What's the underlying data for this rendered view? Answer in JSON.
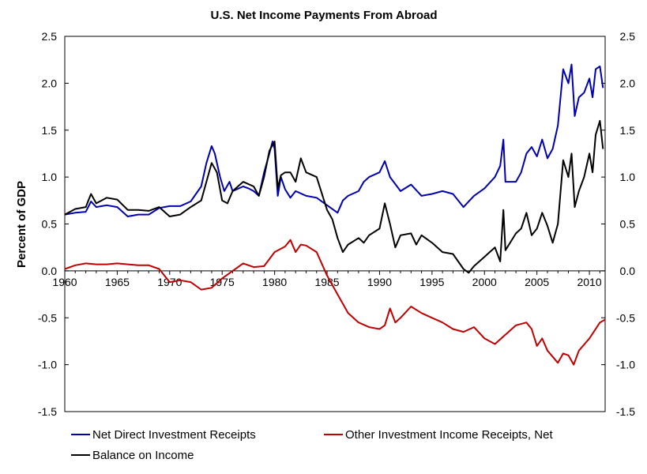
{
  "chart_data": {
    "type": "line",
    "title": "U.S. Net Income Payments From Abroad",
    "ylabel": "Percent of GDP",
    "xlabel": "",
    "xlim": [
      1960,
      2011.5
    ],
    "ylim": [
      -1.5,
      2.5
    ],
    "x_ticks": [
      "1960",
      "1965",
      "1970",
      "1975",
      "1980",
      "1985",
      "1990",
      "1995",
      "2000",
      "2005",
      "2010"
    ],
    "y_ticks_left": [
      "2.5",
      "2.0",
      "1.5",
      "1.0",
      "0.5",
      "0.0",
      "-0.5",
      "-1.0",
      "-1.5"
    ],
    "y_ticks_right": [
      "2.5",
      "2.0",
      "1.5",
      "1.0",
      "0.5",
      "0.0",
      "-0.5",
      "-1.0",
      "-1.5"
    ],
    "grid": false,
    "legend_position": "bottom",
    "series": [
      {
        "name": "Net Direct Investment Receipts",
        "color": "#0000b3",
        "points": [
          [
            1960,
            0.6
          ],
          [
            1961,
            0.62
          ],
          [
            1962,
            0.63
          ],
          [
            1962.5,
            0.74
          ],
          [
            1963,
            0.68
          ],
          [
            1964,
            0.7
          ],
          [
            1965,
            0.68
          ],
          [
            1966,
            0.58
          ],
          [
            1967,
            0.6
          ],
          [
            1968,
            0.6
          ],
          [
            1969,
            0.67
          ],
          [
            1970,
            0.69
          ],
          [
            1971,
            0.69
          ],
          [
            1972,
            0.74
          ],
          [
            1973,
            0.9
          ],
          [
            1973.5,
            1.15
          ],
          [
            1974,
            1.33
          ],
          [
            1974.3,
            1.25
          ],
          [
            1974.8,
            1.0
          ],
          [
            1975.2,
            0.85
          ],
          [
            1975.7,
            0.95
          ],
          [
            1976,
            0.85
          ],
          [
            1977,
            0.9
          ],
          [
            1977.5,
            0.88
          ],
          [
            1978,
            0.85
          ],
          [
            1978.5,
            0.8
          ],
          [
            1979,
            1.05
          ],
          [
            1979.5,
            1.25
          ],
          [
            1979.8,
            1.38
          ],
          [
            1980,
            1.3
          ],
          [
            1980.3,
            0.8
          ],
          [
            1980.6,
            1.0
          ],
          [
            1981,
            0.87
          ],
          [
            1981.5,
            0.78
          ],
          [
            1982,
            0.85
          ],
          [
            1983,
            0.8
          ],
          [
            1984,
            0.78
          ],
          [
            1985,
            0.7
          ],
          [
            1986,
            0.62
          ],
          [
            1986.5,
            0.75
          ],
          [
            1987,
            0.8
          ],
          [
            1988,
            0.85
          ],
          [
            1988.5,
            0.95
          ],
          [
            1989,
            1.0
          ],
          [
            1990,
            1.05
          ],
          [
            1990.5,
            1.17
          ],
          [
            1991,
            1.0
          ],
          [
            1992,
            0.85
          ],
          [
            1993,
            0.92
          ],
          [
            1994,
            0.8
          ],
          [
            1995,
            0.82
          ],
          [
            1996,
            0.85
          ],
          [
            1997,
            0.82
          ],
          [
            1998,
            0.68
          ],
          [
            1999,
            0.8
          ],
          [
            2000,
            0.88
          ],
          [
            2001,
            1.0
          ],
          [
            2001.5,
            1.12
          ],
          [
            2001.8,
            1.4
          ],
          [
            2002,
            0.95
          ],
          [
            2003,
            0.95
          ],
          [
            2003.5,
            1.05
          ],
          [
            2004,
            1.25
          ],
          [
            2004.5,
            1.32
          ],
          [
            2005,
            1.22
          ],
          [
            2005.5,
            1.4
          ],
          [
            2006,
            1.2
          ],
          [
            2006.5,
            1.3
          ],
          [
            2007,
            1.55
          ],
          [
            2007.5,
            2.15
          ],
          [
            2008,
            2.0
          ],
          [
            2008.3,
            2.2
          ],
          [
            2008.6,
            1.65
          ],
          [
            2009,
            1.85
          ],
          [
            2009.5,
            1.9
          ],
          [
            2010,
            2.05
          ],
          [
            2010.3,
            1.85
          ],
          [
            2010.6,
            2.15
          ],
          [
            2011,
            2.18
          ],
          [
            2011.3,
            1.95
          ]
        ]
      },
      {
        "name": "Other Investment Income Receipts, Net",
        "color": "#c00000",
        "points": [
          [
            1960,
            0.02
          ],
          [
            1961,
            0.06
          ],
          [
            1962,
            0.08
          ],
          [
            1963,
            0.07
          ],
          [
            1964,
            0.07
          ],
          [
            1965,
            0.08
          ],
          [
            1966,
            0.07
          ],
          [
            1967,
            0.06
          ],
          [
            1968,
            0.06
          ],
          [
            1969,
            0.02
          ],
          [
            1970,
            -0.12
          ],
          [
            1971,
            -0.1
          ],
          [
            1972,
            -0.12
          ],
          [
            1973,
            -0.2
          ],
          [
            1974,
            -0.18
          ],
          [
            1975,
            -0.08
          ],
          [
            1976,
            0.0
          ],
          [
            1977,
            0.08
          ],
          [
            1978,
            0.04
          ],
          [
            1979,
            0.05
          ],
          [
            1980,
            0.2
          ],
          [
            1981,
            0.26
          ],
          [
            1981.5,
            0.33
          ],
          [
            1982,
            0.2
          ],
          [
            1982.5,
            0.28
          ],
          [
            1983,
            0.27
          ],
          [
            1984,
            0.2
          ],
          [
            1985,
            -0.05
          ],
          [
            1986,
            -0.25
          ],
          [
            1987,
            -0.45
          ],
          [
            1988,
            -0.55
          ],
          [
            1989,
            -0.6
          ],
          [
            1990,
            -0.62
          ],
          [
            1990.5,
            -0.58
          ],
          [
            1991,
            -0.4
          ],
          [
            1991.5,
            -0.55
          ],
          [
            1992,
            -0.5
          ],
          [
            1993,
            -0.38
          ],
          [
            1994,
            -0.45
          ],
          [
            1995,
            -0.5
          ],
          [
            1996,
            -0.55
          ],
          [
            1997,
            -0.62
          ],
          [
            1998,
            -0.65
          ],
          [
            1999,
            -0.6
          ],
          [
            2000,
            -0.72
          ],
          [
            2001,
            -0.78
          ],
          [
            2002,
            -0.68
          ],
          [
            2003,
            -0.58
          ],
          [
            2004,
            -0.55
          ],
          [
            2004.5,
            -0.62
          ],
          [
            2005,
            -0.8
          ],
          [
            2005.5,
            -0.72
          ],
          [
            2006,
            -0.85
          ],
          [
            2007,
            -0.98
          ],
          [
            2007.5,
            -0.88
          ],
          [
            2008,
            -0.9
          ],
          [
            2008.5,
            -1.0
          ],
          [
            2009,
            -0.85
          ],
          [
            2010,
            -0.72
          ],
          [
            2011,
            -0.55
          ],
          [
            2011.5,
            -0.52
          ]
        ]
      },
      {
        "name": "Balance on Income",
        "color": "#000000",
        "points": [
          [
            1960,
            0.6
          ],
          [
            1961,
            0.66
          ],
          [
            1962,
            0.68
          ],
          [
            1962.5,
            0.82
          ],
          [
            1963,
            0.72
          ],
          [
            1964,
            0.78
          ],
          [
            1965,
            0.76
          ],
          [
            1966,
            0.65
          ],
          [
            1967,
            0.65
          ],
          [
            1968,
            0.64
          ],
          [
            1969,
            0.68
          ],
          [
            1970,
            0.58
          ],
          [
            1971,
            0.6
          ],
          [
            1972,
            0.68
          ],
          [
            1973,
            0.75
          ],
          [
            1973.5,
            0.95
          ],
          [
            1974,
            1.15
          ],
          [
            1974.5,
            1.05
          ],
          [
            1975,
            0.75
          ],
          [
            1975.5,
            0.72
          ],
          [
            1976,
            0.85
          ],
          [
            1977,
            0.95
          ],
          [
            1978,
            0.9
          ],
          [
            1978.5,
            0.8
          ],
          [
            1979,
            1.0
          ],
          [
            1979.5,
            1.28
          ],
          [
            1980,
            1.38
          ],
          [
            1980.3,
            0.88
          ],
          [
            1980.6,
            1.02
          ],
          [
            1981,
            1.05
          ],
          [
            1981.5,
            1.05
          ],
          [
            1982,
            0.95
          ],
          [
            1982.5,
            1.2
          ],
          [
            1983,
            1.05
          ],
          [
            1984,
            1.0
          ],
          [
            1985,
            0.65
          ],
          [
            1985.5,
            0.55
          ],
          [
            1986,
            0.35
          ],
          [
            1986.5,
            0.2
          ],
          [
            1987,
            0.28
          ],
          [
            1988,
            0.35
          ],
          [
            1988.5,
            0.3
          ],
          [
            1989,
            0.38
          ],
          [
            1990,
            0.45
          ],
          [
            1990.5,
            0.72
          ],
          [
            1991,
            0.5
          ],
          [
            1991.5,
            0.25
          ],
          [
            1992,
            0.38
          ],
          [
            1993,
            0.4
          ],
          [
            1993.5,
            0.28
          ],
          [
            1994,
            0.38
          ],
          [
            1995,
            0.3
          ],
          [
            1996,
            0.2
          ],
          [
            1997,
            0.18
          ],
          [
            1998,
            0.02
          ],
          [
            1998.5,
            -0.02
          ],
          [
            1999,
            0.05
          ],
          [
            2000,
            0.15
          ],
          [
            2000.5,
            0.2
          ],
          [
            2001,
            0.25
          ],
          [
            2001.5,
            0.1
          ],
          [
            2001.8,
            0.65
          ],
          [
            2002,
            0.22
          ],
          [
            2003,
            0.4
          ],
          [
            2003.5,
            0.45
          ],
          [
            2004,
            0.62
          ],
          [
            2004.5,
            0.38
          ],
          [
            2005,
            0.45
          ],
          [
            2005.5,
            0.62
          ],
          [
            2006,
            0.48
          ],
          [
            2006.5,
            0.3
          ],
          [
            2007,
            0.5
          ],
          [
            2007.5,
            1.18
          ],
          [
            2008,
            1.0
          ],
          [
            2008.3,
            1.25
          ],
          [
            2008.6,
            0.68
          ],
          [
            2009,
            0.85
          ],
          [
            2009.5,
            1.0
          ],
          [
            2010,
            1.25
          ],
          [
            2010.3,
            1.05
          ],
          [
            2010.6,
            1.45
          ],
          [
            2011,
            1.6
          ],
          [
            2011.3,
            1.3
          ]
        ]
      }
    ],
    "legend": [
      {
        "label": "Net Direct Investment Receipts",
        "color": "#0000b3"
      },
      {
        "label": "Other Investment Income Receipts, Net",
        "color": "#c00000"
      },
      {
        "label": "Balance on Income",
        "color": "#000000"
      }
    ]
  }
}
